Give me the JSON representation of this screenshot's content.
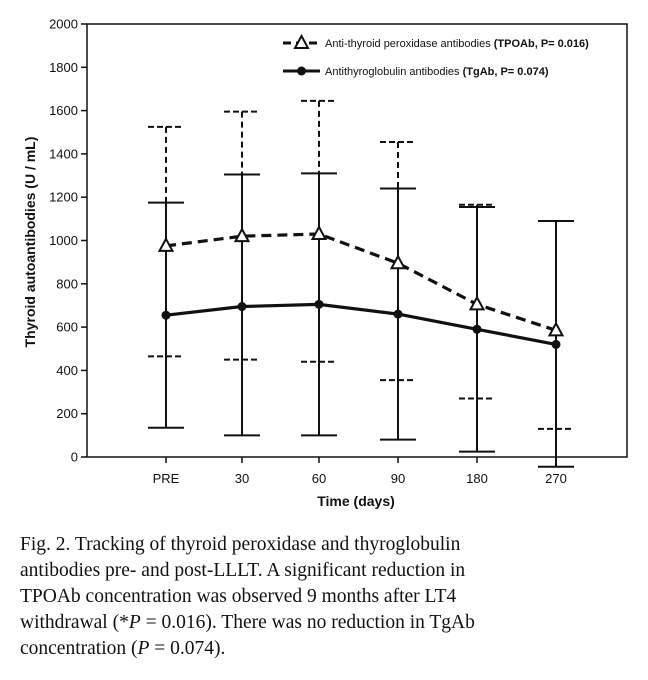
{
  "chart_data": {
    "type": "line",
    "xlabel": "Time  (days)",
    "ylabel": "Thyroid autoantibodies (U / mL)",
    "categories": [
      "PRE",
      "30",
      "60",
      "90",
      "180",
      "270"
    ],
    "ylim": [
      0,
      2000
    ],
    "yticks": [
      0,
      200,
      400,
      600,
      800,
      1000,
      1200,
      1400,
      1600,
      1800,
      2000
    ],
    "grid": false,
    "legend_position": "top-right",
    "series": [
      {
        "name": "Anti-thyroid peroxidase antibodies (TPOAb, P= 0.016)",
        "legend_prefix": "Anti-thyroid peroxidase antibodies ",
        "legend_bold": "(TPOAb, P= 0.016)",
        "line_style": "dashed",
        "marker": "open-triangle",
        "values": [
          975,
          1020,
          1030,
          895,
          705,
          585
        ],
        "upper": [
          1525,
          1595,
          1645,
          1455,
          1165,
          1090
        ],
        "lower": [
          465,
          450,
          440,
          355,
          270,
          130
        ]
      },
      {
        "name": "Antithyroglobulin antibodies (TgAb, P= 0.074)",
        "legend_prefix": "Antithyroglobulin antibodies ",
        "legend_bold": "(TgAb, P= 0.074)",
        "line_style": "solid",
        "marker": "filled-circle",
        "values": [
          655,
          695,
          705,
          660,
          590,
          520
        ],
        "upper": [
          1175,
          1305,
          1310,
          1240,
          1155,
          1090
        ],
        "lower": [
          135,
          100,
          100,
          80,
          25,
          -45
        ]
      }
    ]
  },
  "caption": {
    "line1": "Fig.  2.  Tracking  of  thyroid  peroxidase  and  thyroglobulin",
    "line2": "antibodies  pre-  and  post-LLLT.  A  significant  reduction  in",
    "line3": "TPOAb  concentration  was  observed  9  months  after  LT4",
    "line4_a": "withdrawal (*",
    "line4_p": "P",
    "line4_b": " = 0.016). There was no reduction in TgAb",
    "line5_a": "concentration (",
    "line5_p": "P",
    "line5_b": " = 0.074)."
  }
}
